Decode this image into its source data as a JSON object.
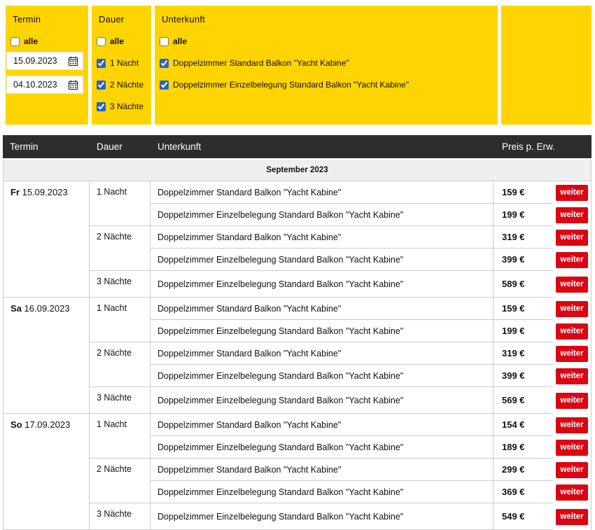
{
  "colors": {
    "panel_yellow": "#ffd400",
    "header_dark": "#2d2d2d",
    "button_red": "#da0613",
    "section_gray": "#efefef",
    "border_gray": "#cccccc",
    "checkbox_blue": "#2a62c8"
  },
  "filters": {
    "termin": {
      "title": "Termin",
      "all_label": "alle",
      "all_checked": false,
      "date_from": "15.09.2023",
      "date_to": "04.10.2023"
    },
    "dauer": {
      "title": "Dauer",
      "all_label": "alle",
      "all_checked": false,
      "options": [
        {
          "label": "1 Nacht",
          "checked": true
        },
        {
          "label": "2 Nächte",
          "checked": true
        },
        {
          "label": "3 Nächte",
          "checked": true
        }
      ]
    },
    "unterkunft": {
      "title": "Unterkunft",
      "all_label": "alle",
      "all_checked": false,
      "options": [
        {
          "label": "Doppelzimmer Standard Balkon \"Yacht Kabine\"",
          "checked": true
        },
        {
          "label": "Doppelzimmer Einzelbelegung Standard Balkon \"Yacht Kabine\"",
          "checked": true
        }
      ]
    }
  },
  "table": {
    "headers": [
      "Termin",
      "Dauer",
      "Unterkunft",
      "Preis p. Erw."
    ],
    "section_label": "September 2023",
    "button_label": "weiter",
    "groups": [
      {
        "weekday": "Fr",
        "date": "15.09.2023",
        "durations": [
          {
            "label": "1 Nacht",
            "offers": [
              {
                "room": "Doppelzimmer Standard Balkon \"Yacht Kabine\"",
                "price": "159 €"
              },
              {
                "room": "Doppelzimmer Einzelbelegung Standard Balkon \"Yacht Kabine\"",
                "price": "199 €"
              }
            ]
          },
          {
            "label": "2 Nächte",
            "offers": [
              {
                "room": "Doppelzimmer Standard Balkon \"Yacht Kabine\"",
                "price": "319 €"
              },
              {
                "room": "Doppelzimmer Einzelbelegung Standard Balkon \"Yacht Kabine\"",
                "price": "399 €"
              }
            ]
          },
          {
            "label": "3 Nächte",
            "offers": [
              {
                "room": "Doppelzimmer Einzelbelegung Standard Balkon \"Yacht Kabine\"",
                "price": "589 €"
              }
            ]
          }
        ]
      },
      {
        "weekday": "Sa",
        "date": "16.09.2023",
        "durations": [
          {
            "label": "1 Nacht",
            "offers": [
              {
                "room": "Doppelzimmer Standard Balkon \"Yacht Kabine\"",
                "price": "159 €"
              },
              {
                "room": "Doppelzimmer Einzelbelegung Standard Balkon \"Yacht Kabine\"",
                "price": "199 €"
              }
            ]
          },
          {
            "label": "2 Nächte",
            "offers": [
              {
                "room": "Doppelzimmer Standard Balkon \"Yacht Kabine\"",
                "price": "319 €"
              },
              {
                "room": "Doppelzimmer Einzelbelegung Standard Balkon \"Yacht Kabine\"",
                "price": "399 €"
              }
            ]
          },
          {
            "label": "3 Nächte",
            "offers": [
              {
                "room": "Doppelzimmer Einzelbelegung Standard Balkon \"Yacht Kabine\"",
                "price": "569 €"
              }
            ]
          }
        ]
      },
      {
        "weekday": "So",
        "date": "17.09.2023",
        "durations": [
          {
            "label": "1 Nacht",
            "offers": [
              {
                "room": "Doppelzimmer Standard Balkon \"Yacht Kabine\"",
                "price": "154 €"
              },
              {
                "room": "Doppelzimmer Einzelbelegung Standard Balkon \"Yacht Kabine\"",
                "price": "189 €"
              }
            ]
          },
          {
            "label": "2 Nächte",
            "offers": [
              {
                "room": "Doppelzimmer Standard Balkon \"Yacht Kabine\"",
                "price": "299 €"
              },
              {
                "room": "Doppelzimmer Einzelbelegung Standard Balkon \"Yacht Kabine\"",
                "price": "369 €"
              }
            ]
          },
          {
            "label": "3 Nächte",
            "offers": [
              {
                "room": "Doppelzimmer Einzelbelegung Standard Balkon \"Yacht Kabine\"",
                "price": "549 €"
              }
            ]
          }
        ]
      }
    ]
  }
}
